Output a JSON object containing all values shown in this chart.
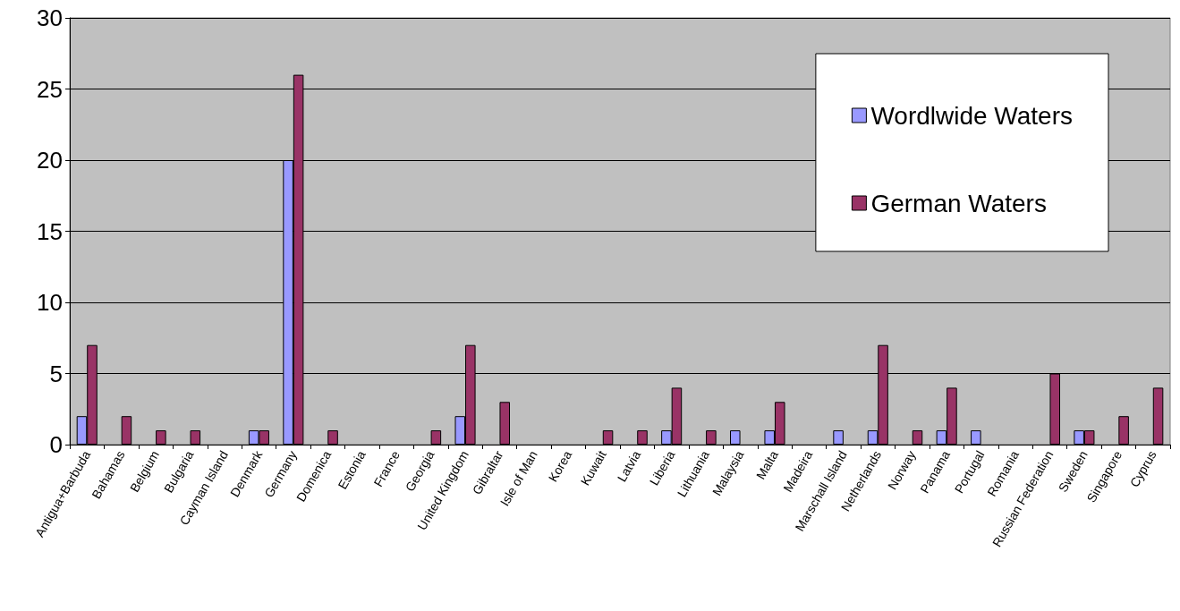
{
  "chart_data": {
    "type": "bar",
    "categories": [
      "Antigua+Barbuda",
      "Bahamas",
      "Belgium",
      "Bulgaria",
      "Cayman Island",
      "Denmark",
      "Germany",
      "Domenica",
      "Estonia",
      "France",
      "Georgia",
      "United Kingdom",
      "Gibraltar",
      "Isle of Man",
      "Korea",
      "Kuwait",
      "Latvia",
      "Liberia",
      "Lithuania",
      "Malaysia",
      "Malta",
      "Madeira",
      "Marschall Island",
      "Netherlands",
      "Norway",
      "Panama",
      "Portugal",
      "Romania",
      "Russian Federation",
      "Sweden",
      "Singapore",
      "Cyprus"
    ],
    "series": [
      {
        "name": "Wordlwide Waters",
        "color": "#9999ff",
        "values": [
          2,
          0,
          0,
          0,
          0,
          1,
          20,
          0,
          0,
          0,
          0,
          2,
          0,
          0,
          0,
          0,
          0,
          1,
          0,
          1,
          1,
          0,
          1,
          1,
          0,
          1,
          1,
          0,
          0,
          1,
          0,
          0
        ]
      },
      {
        "name": "German Waters",
        "color": "#993366",
        "values": [
          7,
          2,
          1,
          1,
          0,
          1,
          26,
          1,
          0,
          0,
          1,
          7,
          3,
          0,
          0,
          1,
          1,
          4,
          1,
          0,
          3,
          0,
          0,
          7,
          1,
          4,
          0,
          0,
          5,
          1,
          2,
          4
        ]
      }
    ],
    "ylim": [
      0,
      30
    ],
    "yticks": [
      0,
      5,
      10,
      15,
      20,
      25,
      30
    ],
    "grid": "y",
    "legend": "top right"
  }
}
